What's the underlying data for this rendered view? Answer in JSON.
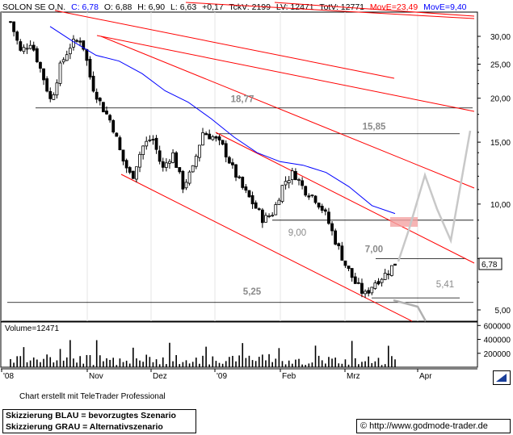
{
  "header": {
    "ticker": "SOLON SE O.N.",
    "close": "C: 6,78",
    "open": "O: 6,88",
    "high": "H: 6,90",
    "low": "L: 6,63",
    "change": "+0,17",
    "tickv": "TckV: 2199",
    "lv": "LV: 12471",
    "totv": "TotV: 12771",
    "ma23": "MovE=23,49",
    "ma9": "MovE=9,40"
  },
  "volume_panel": {
    "title": "Volume=12471",
    "axis_labels": [
      "600000",
      "400000",
      "200000"
    ]
  },
  "last_price_tag": "6,78",
  "annotations": [
    "18,77",
    "15,85",
    "9,00",
    "7,00",
    "5,41",
    "5,25"
  ],
  "footer": {
    "credit": "Chart erstellt mit TeleTrader Professional",
    "legend_blue": "Skizzierung BLAU = bevorzugtes Szenario",
    "legend_grau": "Skizzierung GRAU = Alternativszenario",
    "copyright_url": "© http://www.godmode-trader.de"
  },
  "colors": {
    "candle": "#000000",
    "ma": "#0000ff",
    "trendline": "#ff0000",
    "scenario_grau": "#b0b0b0",
    "target_box": "#f4a3a3"
  },
  "chart_data": {
    "type": "candlestick",
    "title": "SOLON SE O.N.",
    "x_tick_labels": [
      "'08",
      "Nov",
      "Dez",
      "'09",
      "Feb",
      "Mrz",
      "Apr"
    ],
    "y_tick_labels": [
      "30,00",
      "25,00",
      "20,00",
      "15,00",
      "10,00",
      "5,00"
    ],
    "y_scale": "log",
    "ylim": [
      4.3,
      36
    ],
    "volume_ylim": [
      0,
      650000
    ],
    "last_close": 6.78,
    "horizontal_levels": [
      {
        "label": "18,77",
        "value": 18.77
      },
      {
        "label": "15,85",
        "value": 15.85
      },
      {
        "label": "9,00",
        "value": 9.0
      },
      {
        "label": "7,00",
        "value": 7.0
      },
      {
        "label": "5,41",
        "value": 5.41
      },
      {
        "label": "5,25",
        "value": 5.25
      }
    ],
    "ohlc_anchor_closes": [
      33.0,
      27.0,
      29.0,
      24.0,
      19.5,
      25.0,
      28.5,
      29.5,
      22.0,
      19.0,
      17.0,
      13.5,
      11.8,
      14.5,
      15.5,
      12.5,
      14.0,
      11.2,
      12.5,
      16.0,
      15.5,
      14.5,
      12.5,
      11.0,
      10.0,
      9.0,
      9.5,
      11.5,
      12.3,
      11.0,
      10.5,
      9.5,
      8.0,
      6.8,
      6.0,
      5.5,
      6.0,
      6.3,
      6.78
    ],
    "moving_average_23": [
      32.0,
      29.0,
      26.5,
      25.5,
      23.5,
      21.0,
      19.5,
      17.5,
      15.5,
      14.0,
      13.2,
      12.9,
      12.3,
      11.2,
      9.9,
      9.4
    ]
  }
}
